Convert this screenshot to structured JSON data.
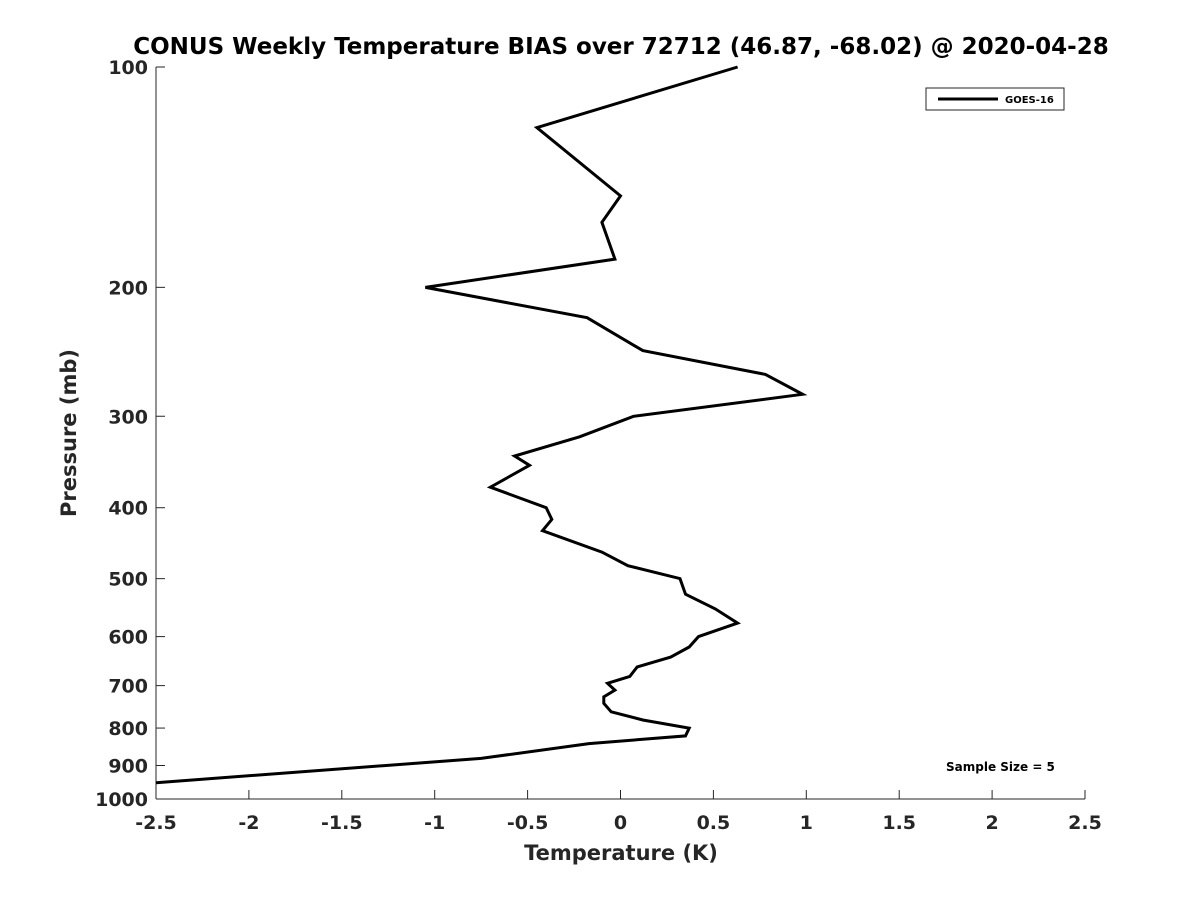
{
  "chart_data": {
    "type": "line",
    "title": "CONUS Weekly Temperature BIAS over 72712 (46.87, -68.02) @ 2020-04-28",
    "xlabel": "Temperature (K)",
    "ylabel": "Pressure (mb)",
    "xlim": [
      -2.5,
      2.5
    ],
    "ylim": [
      100,
      1000
    ],
    "y_scale": "log",
    "y_reversed": true,
    "x_ticks": [
      "-2.5",
      "-2",
      "-1.5",
      "-1",
      "-0.5",
      "0",
      "0.5",
      "1",
      "1.5",
      "2",
      "2.5"
    ],
    "y_ticks": [
      "100",
      "200",
      "300",
      "400",
      "500",
      "600",
      "700",
      "800",
      "900",
      "1000"
    ],
    "grid": false,
    "legend_position": "top-right",
    "series": [
      {
        "name": "GOES-16",
        "color": "#000000",
        "points": [
          [
            0.63,
            100
          ],
          [
            -0.45,
            121
          ],
          [
            0.0,
            150
          ],
          [
            -0.1,
            163
          ],
          [
            -0.03,
            183
          ],
          [
            -1.05,
            200
          ],
          [
            -0.18,
            220
          ],
          [
            0.12,
            244
          ],
          [
            0.78,
            263
          ],
          [
            0.98,
            280
          ],
          [
            0.07,
            300
          ],
          [
            -0.22,
            320
          ],
          [
            -0.57,
            340
          ],
          [
            -0.49,
            350
          ],
          [
            -0.7,
            375
          ],
          [
            -0.4,
            400
          ],
          [
            -0.37,
            415
          ],
          [
            -0.42,
            430
          ],
          [
            -0.1,
            460
          ],
          [
            0.04,
            480
          ],
          [
            0.32,
            500
          ],
          [
            0.35,
            525
          ],
          [
            0.51,
            550
          ],
          [
            0.63,
            575
          ],
          [
            0.42,
            600
          ],
          [
            0.37,
            620
          ],
          [
            0.27,
            640
          ],
          [
            0.09,
            660
          ],
          [
            0.05,
            680
          ],
          [
            -0.07,
            695
          ],
          [
            -0.03,
            710
          ],
          [
            -0.09,
            725
          ],
          [
            -0.09,
            740
          ],
          [
            -0.05,
            760
          ],
          [
            0.12,
            780
          ],
          [
            0.37,
            800
          ],
          [
            0.35,
            820
          ],
          [
            -0.17,
            840
          ],
          [
            -0.75,
            880
          ],
          [
            -2.5,
            950
          ]
        ]
      }
    ],
    "annotations": [
      "Sample Size = 5"
    ]
  }
}
